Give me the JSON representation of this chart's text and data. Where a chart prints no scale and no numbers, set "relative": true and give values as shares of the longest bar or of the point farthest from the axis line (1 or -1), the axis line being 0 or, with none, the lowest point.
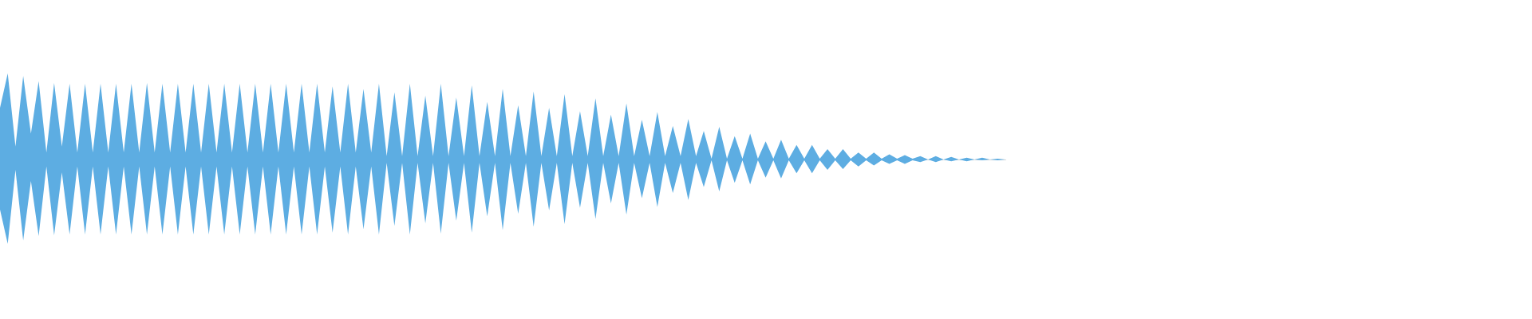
{
  "chart_data": {
    "type": "area",
    "relative": true,
    "categories": [
      null,
      null,
      null,
      null,
      null,
      null,
      null,
      null,
      null,
      null,
      null,
      null,
      null,
      null,
      null,
      null,
      null,
      null,
      null,
      null,
      null,
      null,
      null,
      null,
      null,
      null,
      null,
      null,
      null,
      null,
      null,
      null,
      null,
      null,
      null,
      null,
      null,
      null,
      null,
      null,
      null,
      null,
      null,
      null,
      null,
      null,
      null,
      null,
      null,
      null,
      null,
      null,
      null,
      null,
      null,
      null,
      null,
      null,
      null,
      null,
      null,
      null,
      null,
      null,
      null,
      null,
      null,
      null,
      null,
      null,
      null,
      null,
      null,
      null,
      null,
      null,
      null,
      null,
      null,
      null,
      null,
      null,
      null,
      null,
      null,
      null,
      null,
      null,
      null,
      null,
      null,
      null,
      null,
      null,
      null,
      null,
      null,
      null,
      null,
      null,
      null,
      null,
      null,
      null,
      null,
      null,
      null,
      null,
      null,
      null,
      null,
      null,
      null,
      null,
      null,
      null,
      null,
      null,
      null,
      null,
      null,
      null,
      null,
      null,
      null,
      null,
      null,
      null,
      null,
      null,
      null
    ],
    "series": [
      {
        "color": "#5dade2",
        "values": [
          0.6,
          1,
          0.15,
          0.97,
          0.3,
          0.91,
          0.08,
          0.89,
          0.15,
          0.88,
          0.08,
          0.88,
          0.08,
          0.88,
          0.08,
          0.88,
          0.08,
          0.88,
          0.08,
          0.89,
          0.08,
          0.88,
          0.08,
          0.88,
          0.08,
          0.88,
          0.08,
          0.88,
          0.08,
          0.88,
          0.08,
          0.88,
          0.08,
          0.88,
          0.08,
          0.88,
          0.08,
          0.88,
          0.08,
          0.88,
          0.08,
          0.88,
          0.08,
          0.85,
          0.08,
          0.88,
          0.08,
          0.82,
          0.08,
          0.88,
          0.04,
          0.78,
          0.04,
          0.88,
          0.04,
          0.74,
          0.04,
          0.88,
          0.04,
          0.72,
          0.04,
          0.86,
          0.04,
          0.67,
          0.04,
          0.82,
          0.04,
          0.63,
          0.04,
          0.79,
          0.04,
          0.6,
          0.04,
          0.76,
          0.04,
          0.56,
          0.04,
          0.71,
          0.04,
          0.52,
          0.04,
          0.65,
          0.04,
          0.46,
          0.04,
          0.55,
          0.04,
          0.39,
          0.04,
          0.47,
          0.04,
          0.33,
          0.01,
          0.38,
          0.01,
          0.27,
          0.01,
          0.3,
          0.01,
          0.21,
          0.01,
          0.23,
          0.01,
          0.17,
          0.01,
          0.17,
          0.01,
          0.12,
          0.01,
          0.12,
          0.01,
          0.08,
          0.01,
          0.08,
          0.01,
          0.06,
          0.01,
          0.05,
          0.01,
          0.04,
          0,
          0.04,
          0,
          0.03,
          0,
          0.02,
          0,
          0.02,
          0,
          0.01,
          0
        ]
      },
      {
        "color": "#5dade2",
        "values": [
          -0.58,
          -0.98,
          -0.12,
          -0.94,
          -0.25,
          -0.89,
          -0.08,
          -0.88,
          -0.15,
          -0.87,
          -0.08,
          -0.87,
          -0.08,
          -0.87,
          -0.08,
          -0.87,
          -0.08,
          -0.87,
          -0.08,
          -0.87,
          -0.08,
          -0.87,
          -0.08,
          -0.87,
          -0.08,
          -0.87,
          -0.08,
          -0.87,
          -0.08,
          -0.87,
          -0.08,
          -0.87,
          -0.08,
          -0.87,
          -0.08,
          -0.87,
          -0.08,
          -0.87,
          -0.08,
          -0.87,
          -0.08,
          -0.87,
          -0.08,
          -0.85,
          -0.08,
          -0.87,
          -0.08,
          -0.81,
          -0.08,
          -0.87,
          -0.04,
          -0.77,
          -0.04,
          -0.87,
          -0.04,
          -0.74,
          -0.04,
          -0.86,
          -0.04,
          -0.71,
          -0.04,
          -0.85,
          -0.04,
          -0.66,
          -0.04,
          -0.82,
          -0.04,
          -0.63,
          -0.04,
          -0.78,
          -0.04,
          -0.59,
          -0.04,
          -0.75,
          -0.04,
          -0.56,
          -0.04,
          -0.69,
          -0.04,
          -0.51,
          -0.04,
          -0.64,
          -0.04,
          -0.45,
          -0.04,
          -0.55,
          -0.04,
          -0.39,
          -0.04,
          -0.47,
          -0.04,
          -0.32,
          -0.01,
          -0.37,
          -0.01,
          -0.27,
          -0.01,
          -0.29,
          -0.01,
          -0.21,
          -0.01,
          -0.22,
          -0.01,
          -0.16,
          -0.01,
          -0.16,
          -0.01,
          -0.12,
          -0.01,
          -0.11,
          -0.01,
          -0.08,
          -0.01,
          -0.07,
          -0.01,
          -0.05,
          -0.01,
          -0.05,
          -0.01,
          -0.03,
          0,
          -0.03,
          0,
          -0.02,
          0,
          -0.02,
          0,
          -0.01,
          0,
          -0.01,
          0
        ]
      }
    ]
  }
}
